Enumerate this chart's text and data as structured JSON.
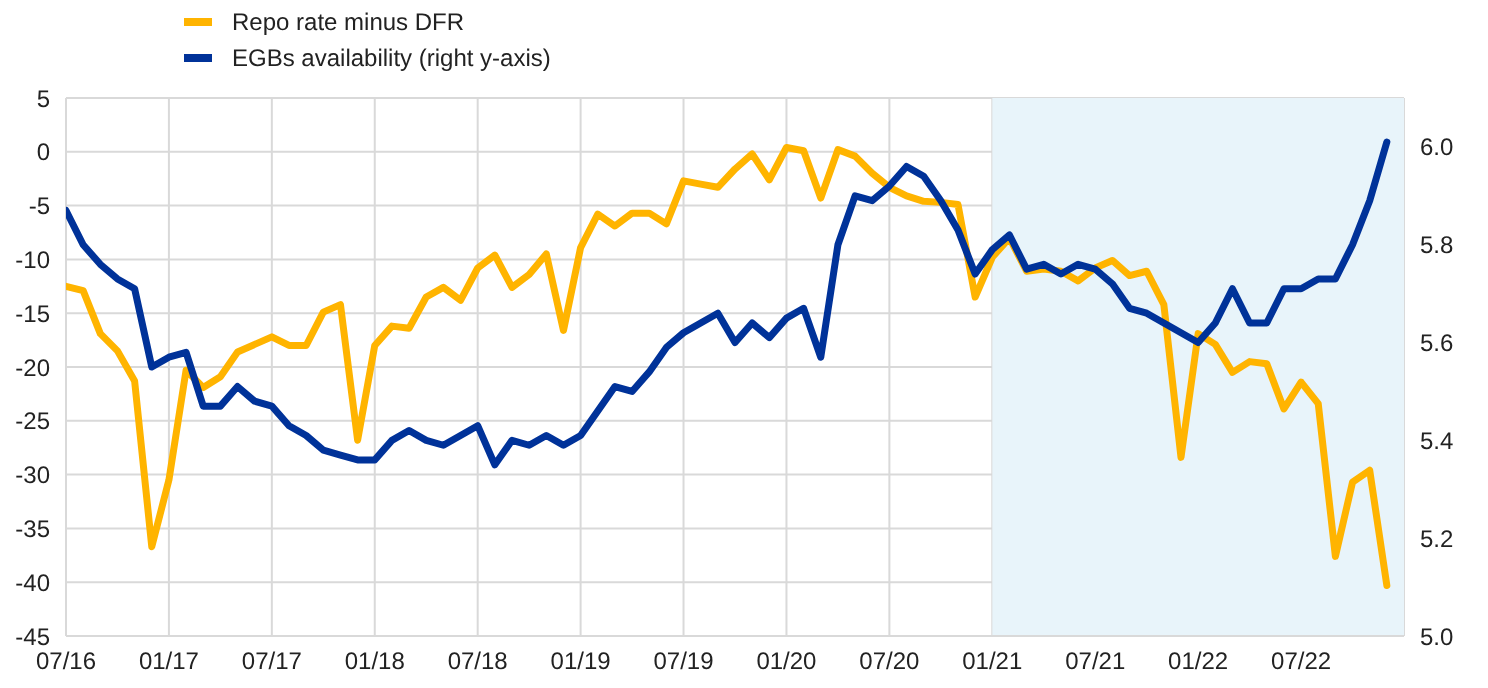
{
  "chart_data": {
    "type": "line",
    "x": [
      "2016-07",
      "2016-08",
      "2016-09",
      "2016-10",
      "2016-11",
      "2016-12",
      "2017-01",
      "2017-02",
      "2017-03",
      "2017-04",
      "2017-05",
      "2017-06",
      "2017-07",
      "2017-08",
      "2017-09",
      "2017-10",
      "2017-11",
      "2017-12",
      "2018-01",
      "2018-02",
      "2018-03",
      "2018-04",
      "2018-05",
      "2018-06",
      "2018-07",
      "2018-08",
      "2018-09",
      "2018-10",
      "2018-11",
      "2018-12",
      "2019-01",
      "2019-02",
      "2019-03",
      "2019-04",
      "2019-05",
      "2019-06",
      "2019-07",
      "2019-08",
      "2019-09",
      "2019-10",
      "2019-11",
      "2019-12",
      "2020-01",
      "2020-02",
      "2020-03",
      "2020-04",
      "2020-05",
      "2020-06",
      "2020-07",
      "2020-08",
      "2020-09",
      "2020-10",
      "2020-11",
      "2020-12",
      "2021-01",
      "2021-02",
      "2021-03",
      "2021-04",
      "2021-05",
      "2021-06",
      "2021-07",
      "2021-08",
      "2021-09",
      "2021-10",
      "2021-11",
      "2021-12",
      "2022-01",
      "2022-02",
      "2022-03",
      "2022-04",
      "2022-05",
      "2022-06",
      "2022-07",
      "2022-08",
      "2022-09",
      "2022-10",
      "2022-11",
      "2022-12"
    ],
    "series": [
      {
        "name": "Repo rate minus DFR",
        "color": "#ffb400",
        "values": [
          -12.5,
          -12.9,
          -16.9,
          -18.5,
          -21.3,
          -36.7,
          -30.5,
          -20.3,
          -21.9,
          -20.9,
          -18.6,
          -17.9,
          -17.2,
          -18,
          -18,
          -14.9,
          -14.2,
          -26.8,
          -18,
          -16.2,
          -16.4,
          -13.5,
          -12.6,
          -13.8,
          -10.8,
          -9.6,
          -12.6,
          -11.4,
          -9.5,
          -16.6,
          -8.9,
          -5.8,
          -6.9,
          -5.7,
          -5.7,
          -6.7,
          -2.7,
          -3,
          -3.3,
          -1.6,
          -0.2,
          -2.6,
          0.4,
          0.1,
          -4.3,
          0.2,
          -0.4,
          -2,
          -3.3,
          -4.1,
          -4.6,
          -4.7,
          -4.9,
          -13.5,
          -9.8,
          -8,
          -11.1,
          -10.9,
          -11.1,
          -12,
          -10.8,
          -10.1,
          -11.5,
          -11.1,
          -14.2,
          -28.4,
          -16.9,
          -17.9,
          -20.5,
          -19.5,
          -19.7,
          -23.9,
          -21.4,
          -23.4,
          -37.6,
          -30.7,
          -29.6,
          -40.3
        ]
      },
      {
        "name": "EGBs availability (right y-axis)",
        "color": "#003299",
        "axis": "y2",
        "values": [
          5.87,
          5.8,
          5.76,
          5.73,
          5.71,
          5.55,
          5.57,
          5.58,
          5.47,
          5.47,
          5.51,
          5.48,
          5.47,
          5.43,
          5.41,
          5.38,
          5.37,
          5.36,
          5.36,
          5.4,
          5.42,
          5.4,
          5.39,
          5.41,
          5.43,
          5.35,
          5.4,
          5.39,
          5.41,
          5.39,
          5.41,
          5.46,
          5.51,
          5.5,
          5.54,
          5.59,
          5.62,
          5.64,
          5.66,
          5.6,
          5.64,
          5.61,
          5.65,
          5.67,
          5.57,
          5.8,
          5.9,
          5.89,
          5.92,
          5.96,
          5.94,
          5.89,
          5.83,
          5.74,
          5.79,
          5.82,
          5.75,
          5.76,
          5.74,
          5.76,
          5.75,
          5.72,
          5.67,
          5.66,
          5.64,
          5.62,
          5.6,
          5.64,
          5.71,
          5.64,
          5.64,
          5.71,
          5.71,
          5.73,
          5.73,
          5.8,
          5.89,
          6.01
        ]
      }
    ],
    "xlim": [
      "2016-07",
      "2023-01"
    ],
    "xticks": [
      {
        "value": "2016-07",
        "label": "07/16"
      },
      {
        "value": "2017-01",
        "label": "01/17"
      },
      {
        "value": "2017-07",
        "label": "07/17"
      },
      {
        "value": "2018-01",
        "label": "01/18"
      },
      {
        "value": "2018-07",
        "label": "07/18"
      },
      {
        "value": "2019-01",
        "label": "01/19"
      },
      {
        "value": "2019-07",
        "label": "07/19"
      },
      {
        "value": "2020-01",
        "label": "01/20"
      },
      {
        "value": "2020-07",
        "label": "07/20"
      },
      {
        "value": "2021-01",
        "label": "01/21"
      },
      {
        "value": "2021-07",
        "label": "07/21"
      },
      {
        "value": "2022-01",
        "label": "01/22"
      },
      {
        "value": "2022-07",
        "label": "07/22"
      }
    ],
    "ylim": [
      -45,
      5
    ],
    "yticks": [
      -45,
      -40,
      -35,
      -30,
      -25,
      -20,
      -15,
      -10,
      -5,
      0,
      5
    ],
    "y2lim": [
      5.0,
      6.1
    ],
    "y2ticks": [
      {
        "value": 5,
        "label": "5.0"
      },
      {
        "value": 5.2,
        "label": "5.2"
      },
      {
        "value": 5.4,
        "label": "5.4"
      },
      {
        "value": 5.6,
        "label": "5.6"
      },
      {
        "value": 5.8,
        "label": "5.8"
      },
      {
        "value": 6,
        "label": "6.0"
      }
    ],
    "bands": [
      {
        "axis": "x",
        "from": "2021-01",
        "to": "2023-01",
        "color": "#e8f4fa"
      }
    ],
    "grid": true,
    "legend": "top left",
    "marker": "none",
    "line_style": "solid"
  }
}
